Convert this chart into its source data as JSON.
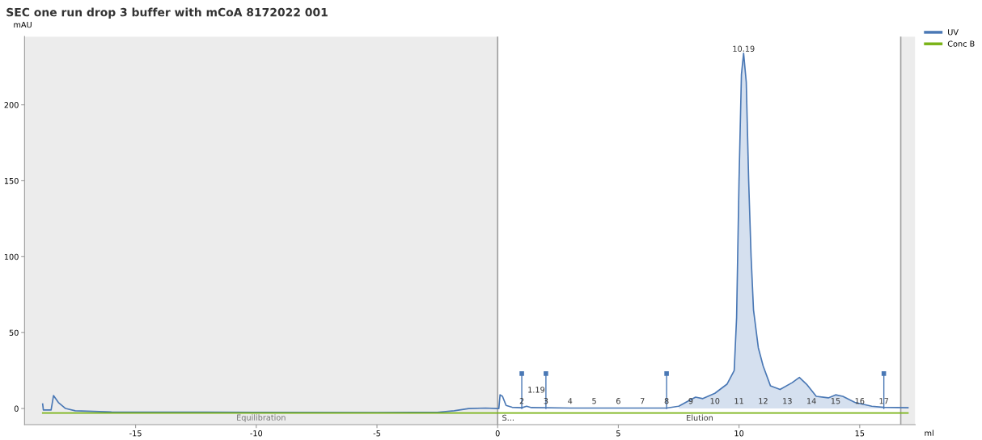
{
  "chart_data": {
    "type": "line",
    "title": "SEC one run drop 3 buffer with mCoA 8172022 001",
    "xlabel": "ml",
    "ylabel": "mAU",
    "xlim": [
      -19.6,
      17.3
    ],
    "xticks": [
      -15,
      -10,
      -5,
      0,
      5,
      10,
      15
    ],
    "ylim": [
      -10.6,
      245
    ],
    "yticks": [
      0,
      50,
      100,
      150,
      200
    ],
    "grid": false,
    "legend": "top right",
    "marker": "none",
    "series": [
      {
        "name": "UV",
        "color": "#4a78b5",
        "x": [
          -18.85,
          -18.82,
          -18.5,
          -18.4,
          -18.2,
          -17.9,
          -17.5,
          -16,
          -10,
          -5,
          -2.5,
          -1.8,
          -1.2,
          -0.5,
          0,
          0.05,
          0.1,
          0.2,
          0.35,
          0.6,
          1,
          1.2,
          1.4,
          3,
          6,
          7,
          7.5,
          7.9,
          8.2,
          8.5,
          9,
          9.5,
          9.8,
          9.9,
          10.0,
          10.1,
          10.19,
          10.3,
          10.4,
          10.5,
          10.6,
          10.8,
          11.0,
          11.3,
          11.7,
          12.2,
          12.5,
          12.8,
          13.2,
          13.7,
          14.0,
          14.3,
          14.8,
          15.5,
          16,
          17.0
        ],
        "values": [
          3,
          -1,
          -1,
          8.5,
          4,
          0,
          -1.5,
          -2.3,
          -2.5,
          -2.7,
          -2.5,
          -1.5,
          0,
          0.3,
          0,
          0,
          9,
          8,
          2,
          0.8,
          0.5,
          1.5,
          0.6,
          0.3,
          0.3,
          0.3,
          1.5,
          5,
          7.5,
          6.5,
          10,
          16,
          25,
          60,
          150,
          220,
          234,
          215,
          150,
          100,
          65,
          40,
          28,
          15,
          12.5,
          17,
          20.5,
          16,
          8,
          7,
          9,
          8,
          4,
          1.5,
          0.8,
          0.5
        ]
      },
      {
        "type": "area",
        "color": "#d5e0ef",
        "x": [
          7.5,
          7.9,
          8.2,
          8.5,
          9,
          9.5,
          9.8,
          9.9,
          10.0,
          10.1,
          10.19,
          10.3,
          10.4,
          10.5,
          10.6,
          10.8,
          11.0,
          11.3,
          11.7,
          12.2,
          12.5,
          12.8,
          13.2,
          13.7,
          14.0,
          14.3,
          14.8,
          15.5,
          16
        ],
        "values": [
          1.5,
          5,
          7.5,
          6.5,
          10,
          16,
          25,
          60,
          150,
          220,
          234,
          215,
          150,
          100,
          65,
          40,
          28,
          15,
          12.5,
          17,
          20.5,
          16,
          8,
          7,
          9,
          8,
          4,
          1.5,
          0.8
        ]
      },
      {
        "name": "Conc B",
        "color": "#7ab317",
        "x": [
          -18.85,
          17.0
        ],
        "values": [
          -3,
          -3
        ]
      },
      {
        "type": "lollipop",
        "color": "#4a78b5",
        "marker": "square",
        "x": [
          1,
          2,
          7,
          16
        ],
        "values": [
          23,
          23,
          23,
          23
        ]
      }
    ],
    "bands": [
      {
        "axis": "x",
        "from": -19.6,
        "to": 0,
        "label": "Equilibration",
        "color": "#ececec"
      },
      {
        "axis": "x",
        "from": 16.7,
        "to": 17.3,
        "color": "#ececec"
      }
    ],
    "ref_lines": [
      {
        "axis": "x",
        "value": 0,
        "color": "#a0a0a0"
      },
      {
        "axis": "x",
        "value": 16.7,
        "color": "#a0a0a0"
      }
    ],
    "annotations": [
      {
        "text": "10.19",
        "x": 10.19,
        "y": 234
      },
      {
        "text": "1.19",
        "x": 1.19,
        "y": 2
      },
      "S...",
      "Elution",
      {
        "text": "2",
        "x": 1,
        "y": 2
      },
      {
        "text": "3",
        "x": 2,
        "y": 2
      },
      {
        "text": "4",
        "x": 3,
        "y": 2
      },
      {
        "text": "5",
        "x": 4,
        "y": 2
      },
      {
        "text": "6",
        "x": 5,
        "y": 2
      },
      {
        "text": "7",
        "x": 6,
        "y": 2
      },
      {
        "text": "8",
        "x": 7,
        "y": 2
      },
      {
        "text": "9",
        "x": 8,
        "y": 2
      },
      {
        "text": "10",
        "x": 9,
        "y": 2
      },
      {
        "text": "11",
        "x": 10,
        "y": 2
      },
      {
        "text": "12",
        "x": 11,
        "y": 2
      },
      {
        "text": "13",
        "x": 12,
        "y": 2
      },
      {
        "text": "14",
        "x": 13,
        "y": 2
      },
      {
        "text": "15",
        "x": 14,
        "y": 2
      },
      {
        "text": "16",
        "x": 15,
        "y": 2
      },
      {
        "text": "17",
        "x": 16,
        "y": 2
      }
    ]
  }
}
